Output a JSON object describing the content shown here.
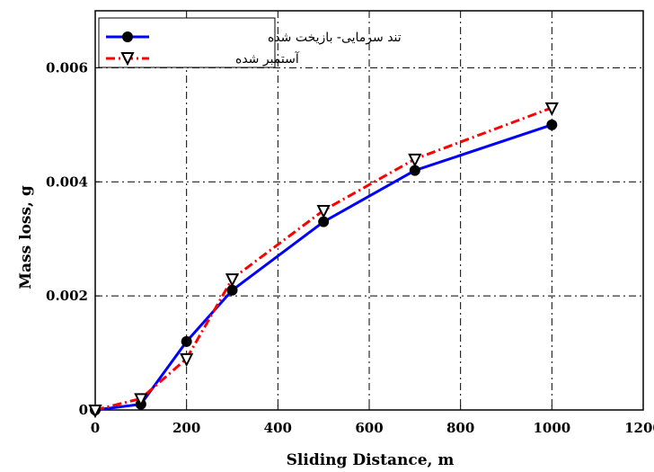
{
  "chart_data": {
    "type": "line",
    "xlabel": "Sliding Distance, m",
    "ylabel": "Mass loss, g",
    "xlim": [
      0,
      1200
    ],
    "ylim": [
      0,
      0.007
    ],
    "xticks": [
      0,
      200,
      400,
      600,
      800,
      1000,
      1200
    ],
    "yticks": [
      0,
      0.002,
      0.004,
      0.006
    ],
    "xtick_labels": [
      "0",
      "200",
      "400",
      "600",
      "800",
      "1000",
      "1200"
    ],
    "ytick_labels": [
      "0",
      "0.002",
      "0.004",
      "0.006"
    ],
    "grid": true,
    "legend_position": "top-left",
    "series": [
      {
        "name": "تند سرمایی- بازیخت شده",
        "color": "#0000ff",
        "line_style": "solid",
        "marker": "circle",
        "x": [
          0,
          100,
          200,
          300,
          500,
          700,
          1000
        ],
        "y": [
          0.0,
          0.0001,
          0.0012,
          0.0021,
          0.0033,
          0.0042,
          0.005
        ]
      },
      {
        "name": "آستمبر شده",
        "color": "#ff0000",
        "line_style": "dash-dot",
        "marker": "triangle-down",
        "x": [
          0,
          100,
          200,
          300,
          500,
          700,
          1000
        ],
        "y": [
          0.0,
          0.0002,
          0.0009,
          0.0023,
          0.0035,
          0.0044,
          0.0053
        ]
      }
    ]
  }
}
